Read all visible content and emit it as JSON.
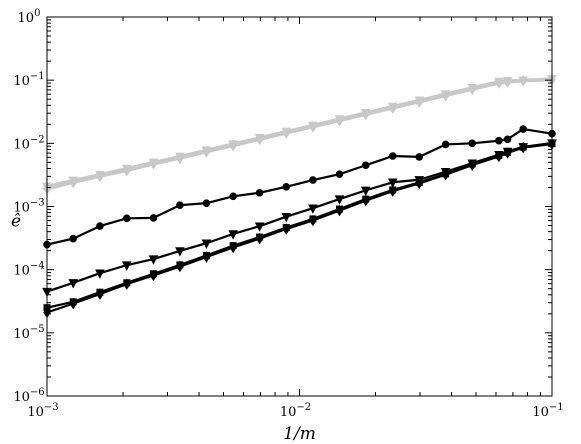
{
  "chart_data": {
    "type": "line",
    "title": "",
    "xlabel": "1/m",
    "ylabel": "ê",
    "x_scale": "log",
    "y_scale": "log",
    "xlim": [
      0.001,
      0.1
    ],
    "ylim": [
      1e-06,
      1
    ],
    "x_ticks": [
      {
        "value": 0.001,
        "base": "10",
        "exp": "−3"
      },
      {
        "value": 0.01,
        "base": "10",
        "exp": "−2"
      },
      {
        "value": 0.1,
        "base": "10",
        "exp": "−1"
      }
    ],
    "y_ticks": [
      {
        "value": 1,
        "base": "10",
        "exp": "0"
      },
      {
        "value": 0.1,
        "base": "10",
        "exp": "−1"
      },
      {
        "value": 0.01,
        "base": "10",
        "exp": "−2"
      },
      {
        "value": 0.001,
        "base": "10",
        "exp": "−3"
      },
      {
        "value": 0.0001,
        "base": "10",
        "exp": "−4"
      },
      {
        "value": 1e-05,
        "base": "10",
        "exp": "−5"
      },
      {
        "value": 1e-06,
        "base": "10",
        "exp": "−6"
      }
    ],
    "grid": false,
    "x": [
      0.001,
      0.00127,
      0.00162,
      0.00207,
      0.00264,
      0.00336,
      0.00428,
      0.00546,
      0.00695,
      0.00886,
      0.0113,
      0.0144,
      0.0183,
      0.0234,
      0.0298,
      0.0379,
      0.0483,
      0.0616,
      0.0667,
      0.0769,
      0.1
    ],
    "series": [
      {
        "color": "#c8c8c8",
        "marker": "triangle-down",
        "values": [
          0.0021,
          0.0026,
          0.0032,
          0.004,
          0.005,
          0.0062,
          0.0078,
          0.0098,
          0.0123,
          0.0154,
          0.0193,
          0.0243,
          0.0305,
          0.0384,
          0.0482,
          0.0606,
          0.0761,
          0.0956,
          0.0984,
          0.0995,
          0.105
        ]
      },
      {
        "color": "#c8c8c8",
        "marker": "diamond",
        "values": [
          0.0019,
          0.0024,
          0.003,
          0.0037,
          0.0047,
          0.0058,
          0.0073,
          0.0092,
          0.0115,
          0.0145,
          0.0182,
          0.0228,
          0.0287,
          0.036,
          0.0452,
          0.0568,
          0.0714,
          0.0897,
          0.093,
          0.0975,
          0.101
        ]
      },
      {
        "color": "#000000",
        "marker": "circle",
        "values": [
          0.00025,
          0.00031,
          0.00049,
          0.00065,
          0.00066,
          0.00105,
          0.00113,
          0.00145,
          0.00165,
          0.00205,
          0.00262,
          0.00325,
          0.0045,
          0.0063,
          0.0061,
          0.0096,
          0.01,
          0.011,
          0.0116,
          0.0168,
          0.0142
        ]
      },
      {
        "color": "#000000",
        "marker": "triangle-down",
        "values": [
          4.5e-05,
          6.2e-05,
          8.8e-05,
          0.000118,
          0.000147,
          0.000198,
          0.000262,
          0.000368,
          0.000488,
          0.00069,
          0.00094,
          0.00131,
          0.0018,
          0.00242,
          0.00265,
          0.00355,
          0.00485,
          0.0066,
          0.00745,
          0.0088,
          0.0101
        ]
      },
      {
        "color": "#000000",
        "marker": "square",
        "values": [
          2.5e-05,
          3.1e-05,
          4.4e-05,
          6.2e-05,
          8.6e-05,
          0.000119,
          0.000168,
          0.00024,
          0.000328,
          0.000464,
          0.000636,
          0.000912,
          0.00131,
          0.00183,
          0.0024,
          0.0033,
          0.0047,
          0.0064,
          0.0072,
          0.0087,
          0.0099
        ]
      },
      {
        "color": "#000000",
        "marker": "diamond",
        "values": [
          2.1e-05,
          2.9e-05,
          4.1e-05,
          5.9e-05,
          8.1e-05,
          0.000112,
          0.000158,
          0.000225,
          0.00031,
          0.00044,
          0.0006,
          0.00086,
          0.00124,
          0.00175,
          0.00232,
          0.00318,
          0.00452,
          0.0062,
          0.00705,
          0.00855,
          0.00975
        ]
      }
    ]
  }
}
